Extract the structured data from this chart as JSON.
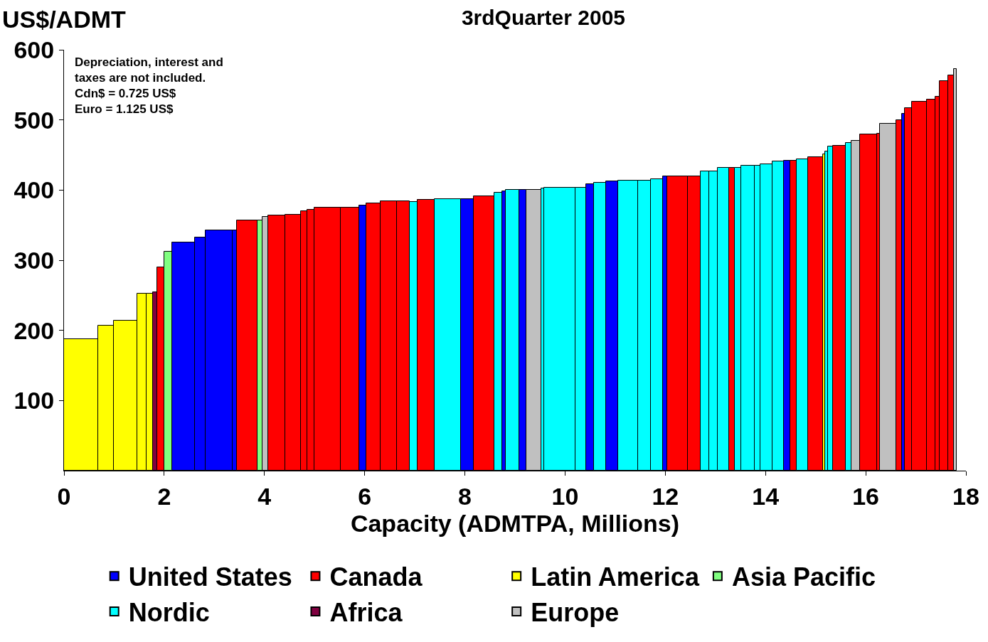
{
  "chart_data": {
    "type": "histogram",
    "title": "3rdQuarter 2005",
    "xlabel": "Capacity (ADMTPA, Millions)",
    "ylabel": "US$/ADMT",
    "annotations": [
      "Depreciation, interest and\ntaxes are not included.\nCdn$ = 0.725 US$\nEuro = 1.125 US$"
    ],
    "bins": [
      0,
      0.68,
      0.99,
      1.46,
      1.64,
      1.77,
      1.86,
      2.0,
      2.16,
      2.61,
      2.83,
      3.37,
      3.45,
      3.86,
      3.96,
      4.08,
      4.42,
      4.72,
      4.86,
      5.0,
      5.52,
      5.89,
      6.03,
      6.31,
      6.64,
      6.9,
      7.06,
      7.4,
      7.92,
      8.17,
      8.59,
      8.74,
      8.82,
      9.09,
      9.23,
      9.53,
      9.58,
      10.21,
      10.42,
      10.57,
      10.81,
      11.06,
      11.45,
      11.71,
      11.95,
      12.04,
      12.45,
      12.7,
      12.88,
      13.04,
      13.27,
      13.38,
      13.51,
      13.79,
      13.9,
      14.14,
      14.36,
      14.49,
      14.62,
      14.85,
      15.14,
      15.19,
      15.25,
      15.35,
      15.6,
      15.71,
      15.88,
      16.22,
      16.28,
      16.61,
      16.72,
      16.78,
      16.92,
      17.22,
      17.39,
      17.48,
      17.65,
      17.76,
      17.82
    ],
    "series": [
      {
        "name": "United States",
        "color": "#0000ff",
        "values": [
          null,
          null,
          null,
          null,
          null,
          null,
          null,
          null,
          325,
          332,
          343,
          343,
          null,
          null,
          null,
          null,
          null,
          null,
          null,
          null,
          null,
          378,
          null,
          null,
          null,
          null,
          null,
          null,
          387,
          null,
          null,
          398,
          null,
          400,
          null,
          null,
          null,
          null,
          408,
          null,
          412,
          null,
          null,
          null,
          420,
          null,
          null,
          null,
          null,
          null,
          null,
          null,
          null,
          null,
          null,
          null,
          442,
          null,
          null,
          null,
          null,
          null,
          null,
          null,
          null,
          null,
          null,
          null,
          null,
          null,
          509,
          null,
          null,
          null,
          null,
          null,
          null,
          null
        ]
      },
      {
        "name": "Canada",
        "color": "#ff0000",
        "values": [
          null,
          null,
          null,
          null,
          null,
          null,
          290,
          null,
          null,
          null,
          null,
          null,
          357,
          null,
          null,
          364,
          365,
          370,
          372,
          375,
          375,
          null,
          381,
          384,
          384,
          null,
          386,
          null,
          null,
          391,
          null,
          null,
          null,
          null,
          null,
          null,
          null,
          null,
          null,
          null,
          null,
          null,
          null,
          null,
          null,
          420,
          420,
          null,
          null,
          null,
          432,
          null,
          null,
          null,
          null,
          null,
          null,
          442,
          null,
          447,
          null,
          null,
          null,
          463,
          null,
          null,
          479,
          480,
          null,
          500,
          null,
          517,
          526,
          529,
          533,
          555,
          564,
          null
        ]
      },
      {
        "name": "Latin America",
        "color": "#ffff00",
        "values": [
          188,
          207,
          214,
          252,
          252,
          null,
          null,
          null,
          null,
          null,
          null,
          null,
          null,
          null,
          null,
          null,
          null,
          null,
          null,
          null,
          null,
          null,
          null,
          null,
          null,
          null,
          null,
          null,
          null,
          null,
          null,
          null,
          null,
          null,
          null,
          null,
          null,
          null,
          null,
          null,
          null,
          null,
          null,
          null,
          null,
          null,
          null,
          null,
          null,
          null,
          null,
          null,
          null,
          null,
          null,
          null,
          null,
          null,
          null,
          null,
          451,
          null,
          null,
          null,
          null,
          null,
          null,
          null,
          null,
          null,
          null,
          null,
          null,
          null,
          null,
          null,
          null,
          null
        ]
      },
      {
        "name": "Asia Pacific",
        "color": "#80ff80",
        "values": [
          null,
          null,
          null,
          null,
          null,
          null,
          null,
          312,
          null,
          null,
          null,
          null,
          null,
          357,
          null,
          null,
          null,
          null,
          null,
          null,
          null,
          null,
          null,
          null,
          null,
          null,
          null,
          null,
          null,
          null,
          null,
          null,
          null,
          null,
          null,
          null,
          null,
          null,
          null,
          null,
          null,
          null,
          null,
          null,
          null,
          null,
          null,
          null,
          null,
          null,
          null,
          null,
          null,
          null,
          null,
          null,
          null,
          null,
          null,
          null,
          null,
          null,
          null,
          null,
          null,
          null,
          null,
          null,
          null,
          null,
          null,
          null,
          null,
          null,
          null,
          null,
          null,
          null
        ]
      },
      {
        "name": "Nordic",
        "color": "#00ffff",
        "values": [
          null,
          null,
          null,
          null,
          null,
          null,
          null,
          null,
          null,
          null,
          null,
          null,
          null,
          null,
          null,
          null,
          null,
          null,
          null,
          null,
          null,
          null,
          null,
          null,
          null,
          383,
          null,
          387,
          null,
          null,
          396,
          null,
          400,
          null,
          null,
          402,
          403,
          403,
          null,
          410,
          null,
          414,
          414,
          416,
          null,
          null,
          null,
          427,
          427,
          432,
          null,
          432,
          435,
          435,
          437,
          441,
          null,
          null,
          444,
          null,
          null,
          455,
          462,
          null,
          467,
          null,
          null,
          null,
          null,
          null,
          null,
          null,
          null,
          null,
          null,
          null,
          null,
          null
        ]
      },
      {
        "name": "Africa",
        "color": "#800040",
        "values": [
          null,
          null,
          null,
          null,
          null,
          254,
          null,
          null,
          null,
          null,
          null,
          null,
          null,
          null,
          null,
          null,
          null,
          null,
          null,
          null,
          null,
          null,
          null,
          null,
          null,
          null,
          null,
          null,
          null,
          null,
          null,
          null,
          null,
          null,
          null,
          null,
          null,
          null,
          null,
          null,
          null,
          null,
          null,
          null,
          null,
          null,
          null,
          null,
          null,
          null,
          null,
          null,
          null,
          null,
          null,
          null,
          null,
          null,
          null,
          null,
          null,
          null,
          null,
          null,
          null,
          null,
          null,
          null,
          null,
          null,
          null,
          null,
          null,
          null,
          null,
          null,
          null,
          null
        ]
      },
      {
        "name": "Europe",
        "color": "#c0c0c0",
        "values": [
          null,
          null,
          null,
          null,
          null,
          null,
          null,
          null,
          null,
          null,
          null,
          null,
          null,
          null,
          362,
          null,
          null,
          null,
          null,
          null,
          null,
          null,
          null,
          null,
          null,
          null,
          null,
          null,
          null,
          null,
          null,
          null,
          null,
          null,
          400,
          null,
          null,
          null,
          null,
          null,
          null,
          null,
          null,
          null,
          null,
          null,
          null,
          null,
          null,
          null,
          null,
          null,
          null,
          null,
          null,
          null,
          null,
          null,
          null,
          null,
          null,
          null,
          null,
          null,
          null,
          470,
          null,
          null,
          495,
          null,
          null,
          null,
          null,
          null,
          null,
          null,
          null,
          573
        ]
      }
    ],
    "xlim": [
      0,
      18
    ],
    "xticks": [
      0,
      2,
      4,
      6,
      8,
      10,
      12,
      14,
      16,
      18
    ],
    "ylim": [
      0,
      600
    ],
    "yticks": [
      100,
      200,
      300,
      400,
      500,
      600
    ],
    "legend": "bottom"
  }
}
